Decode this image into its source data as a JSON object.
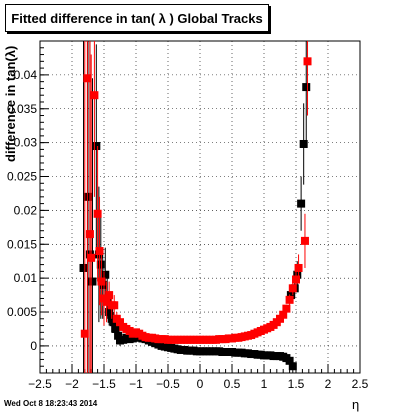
{
  "timestamp": "Wed Oct  8 18:23:43 2014",
  "chart_data": {
    "type": "scatter",
    "title": "Fitted difference in tan( λ )  Global Tracks",
    "xlabel": "η",
    "ylabel": "difference in tan(λ)",
    "xlim": [
      -2.5,
      2.5
    ],
    "ylim": [
      -0.004,
      0.045
    ],
    "xticks": [
      -2.5,
      -2,
      -1.5,
      -1,
      -0.5,
      0,
      0.5,
      1,
      1.5,
      2,
      2.5
    ],
    "xtick_labels": [
      "−2.5",
      "−2",
      "−1.5",
      "−1",
      "−0.5",
      "0",
      "0.5",
      "1",
      "1.5",
      "2",
      "2.5"
    ],
    "yticks": [
      0,
      0.005,
      0.01,
      0.015,
      0.02,
      0.025,
      0.03,
      0.035,
      0.04
    ],
    "ytick_labels": [
      "0",
      "0.005",
      "0.01",
      "0.015",
      "0.02",
      "0.025",
      "0.03",
      "0.035",
      "0.04"
    ],
    "grid": true,
    "series": [
      {
        "color": "#000000",
        "points": [
          {
            "x": -1.82,
            "y": 0.0115,
            "err": 0.05
          },
          {
            "x": -1.75,
            "y": 0.022,
            "err": 0.05
          },
          {
            "x": -1.72,
            "y": 0.0135,
            "err": 0.04
          },
          {
            "x": -1.68,
            "y": 0.0095,
            "err": 0.03
          },
          {
            "x": -1.62,
            "y": 0.0295,
            "err": 0.015
          },
          {
            "x": -1.58,
            "y": 0.0135,
            "err": 0.01
          },
          {
            "x": -1.55,
            "y": 0.012,
            "err": 0.008
          },
          {
            "x": -1.52,
            "y": 0.009,
            "err": 0.005
          },
          {
            "x": -1.48,
            "y": 0.0105,
            "err": 0.004
          },
          {
            "x": -1.45,
            "y": 0.007,
            "err": 0.003
          },
          {
            "x": -1.42,
            "y": 0.005,
            "err": 0.002
          },
          {
            "x": -1.38,
            "y": 0.004,
            "err": 0.002
          },
          {
            "x": -1.35,
            "y": 0.0035,
            "err": 0.0015
          },
          {
            "x": -1.32,
            "y": 0.0025,
            "err": 0.001
          },
          {
            "x": -1.28,
            "y": 0.0015,
            "err": 0.001
          },
          {
            "x": -1.25,
            "y": 0.0008,
            "err": 0.0008
          },
          {
            "x": -1.2,
            "y": 0.0009,
            "err": 0.0006
          },
          {
            "x": -1.15,
            "y": 0.0012,
            "err": 0.0006
          },
          {
            "x": -1.1,
            "y": 0.001,
            "err": 0.0005
          },
          {
            "x": -1.05,
            "y": 0.0011,
            "err": 0.0005
          },
          {
            "x": -1.0,
            "y": 0.0013,
            "err": 0.0005
          },
          {
            "x": -0.95,
            "y": 0.0012,
            "err": 0.0004
          },
          {
            "x": -0.9,
            "y": 0.0011,
            "err": 0.0004
          },
          {
            "x": -0.85,
            "y": 0.001,
            "err": 0.0004
          },
          {
            "x": -0.8,
            "y": 0.0008,
            "err": 0.0003
          },
          {
            "x": -0.75,
            "y": 0.0006,
            "err": 0.0003
          },
          {
            "x": -0.7,
            "y": 0.0004,
            "err": 0.0003
          },
          {
            "x": -0.65,
            "y": 0.0002,
            "err": 0.0003
          },
          {
            "x": -0.6,
            "y": 0.0,
            "err": 0.0003
          },
          {
            "x": -0.55,
            "y": -0.0001,
            "err": 0.0003
          },
          {
            "x": -0.5,
            "y": -0.0002,
            "err": 0.0003
          },
          {
            "x": -0.45,
            "y": -0.0003,
            "err": 0.0003
          },
          {
            "x": -0.4,
            "y": -0.0004,
            "err": 0.0003
          },
          {
            "x": -0.35,
            "y": -0.0005,
            "err": 0.0003
          },
          {
            "x": -0.3,
            "y": -0.0006,
            "err": 0.0003
          },
          {
            "x": -0.25,
            "y": -0.0006,
            "err": 0.0003
          },
          {
            "x": -0.2,
            "y": -0.0007,
            "err": 0.0003
          },
          {
            "x": -0.15,
            "y": -0.0007,
            "err": 0.0003
          },
          {
            "x": -0.1,
            "y": -0.0007,
            "err": 0.0003
          },
          {
            "x": -0.05,
            "y": -0.0008,
            "err": 0.0003
          },
          {
            "x": 0.0,
            "y": -0.0008,
            "err": 0.0003
          },
          {
            "x": 0.05,
            "y": -0.0008,
            "err": 0.0003
          },
          {
            "x": 0.1,
            "y": -0.0008,
            "err": 0.0003
          },
          {
            "x": 0.15,
            "y": -0.0008,
            "err": 0.0003
          },
          {
            "x": 0.2,
            "y": -0.0008,
            "err": 0.0003
          },
          {
            "x": 0.25,
            "y": -0.0008,
            "err": 0.0003
          },
          {
            "x": 0.3,
            "y": -0.0008,
            "err": 0.0003
          },
          {
            "x": 0.35,
            "y": -0.0009,
            "err": 0.0003
          },
          {
            "x": 0.4,
            "y": -0.0009,
            "err": 0.0003
          },
          {
            "x": 0.45,
            "y": -0.0009,
            "err": 0.0003
          },
          {
            "x": 0.5,
            "y": -0.0009,
            "err": 0.0003
          },
          {
            "x": 0.55,
            "y": -0.001,
            "err": 0.0003
          },
          {
            "x": 0.6,
            "y": -0.001,
            "err": 0.0003
          },
          {
            "x": 0.65,
            "y": -0.001,
            "err": 0.0003
          },
          {
            "x": 0.7,
            "y": -0.0011,
            "err": 0.0003
          },
          {
            "x": 0.75,
            "y": -0.0011,
            "err": 0.0003
          },
          {
            "x": 0.8,
            "y": -0.0012,
            "err": 0.0003
          },
          {
            "x": 0.85,
            "y": -0.0012,
            "err": 0.0003
          },
          {
            "x": 0.9,
            "y": -0.0013,
            "err": 0.0003
          },
          {
            "x": 0.95,
            "y": -0.0013,
            "err": 0.0003
          },
          {
            "x": 1.0,
            "y": -0.0014,
            "err": 0.0004
          },
          {
            "x": 1.05,
            "y": -0.0014,
            "err": 0.0004
          },
          {
            "x": 1.1,
            "y": -0.0014,
            "err": 0.0004
          },
          {
            "x": 1.15,
            "y": -0.0015,
            "err": 0.0004
          },
          {
            "x": 1.2,
            "y": -0.0015,
            "err": 0.0004
          },
          {
            "x": 1.25,
            "y": -0.0015,
            "err": 0.0005
          },
          {
            "x": 1.3,
            "y": -0.0016,
            "err": 0.0005
          },
          {
            "x": 1.35,
            "y": -0.0018,
            "err": 0.0006
          },
          {
            "x": 1.4,
            "y": -0.0022,
            "err": 0.0008
          },
          {
            "x": 1.45,
            "y": -0.003,
            "err": 0.001
          },
          {
            "x": 1.42,
            "y": 0.0075,
            "err": 0.001
          },
          {
            "x": 1.48,
            "y": 0.0085,
            "err": 0.0015
          },
          {
            "x": 1.52,
            "y": 0.0105,
            "err": 0.002
          },
          {
            "x": 1.58,
            "y": 0.021,
            "err": 0.004
          },
          {
            "x": 1.62,
            "y": 0.0298,
            "err": 0.006
          },
          {
            "x": 1.66,
            "y": 0.0382,
            "err": 0.008
          }
        ]
      },
      {
        "color": "#ff0000",
        "points": [
          {
            "x": -1.8,
            "y": 0.0018,
            "err": 0.05
          },
          {
            "x": -1.76,
            "y": 0.0395,
            "err": 0.05
          },
          {
            "x": -1.72,
            "y": 0.0165,
            "err": 0.04
          },
          {
            "x": -1.7,
            "y": 0.013,
            "err": 0.03
          },
          {
            "x": -1.65,
            "y": 0.037,
            "err": 0.015
          },
          {
            "x": -1.6,
            "y": 0.0195,
            "err": 0.01
          },
          {
            "x": -1.57,
            "y": 0.014,
            "err": 0.008
          },
          {
            "x": -1.54,
            "y": 0.0095,
            "err": 0.005
          },
          {
            "x": -1.5,
            "y": 0.007,
            "err": 0.004
          },
          {
            "x": -1.46,
            "y": 0.0065,
            "err": 0.003
          },
          {
            "x": -1.42,
            "y": 0.0075,
            "err": 0.002
          },
          {
            "x": -1.38,
            "y": 0.006,
            "err": 0.002
          },
          {
            "x": -1.34,
            "y": 0.006,
            "err": 0.0015
          },
          {
            "x": -1.3,
            "y": 0.004,
            "err": 0.001
          },
          {
            "x": -1.25,
            "y": 0.0035,
            "err": 0.001
          },
          {
            "x": -1.2,
            "y": 0.0028,
            "err": 0.0008
          },
          {
            "x": -1.15,
            "y": 0.0025,
            "err": 0.0006
          },
          {
            "x": -1.1,
            "y": 0.0022,
            "err": 0.0006
          },
          {
            "x": -1.05,
            "y": 0.0018,
            "err": 0.0005
          },
          {
            "x": -1.0,
            "y": 0.002,
            "err": 0.0005
          },
          {
            "x": -0.95,
            "y": 0.0018,
            "err": 0.0004
          },
          {
            "x": -0.9,
            "y": 0.0015,
            "err": 0.0004
          },
          {
            "x": -0.85,
            "y": 0.0013,
            "err": 0.0004
          },
          {
            "x": -0.8,
            "y": 0.0012,
            "err": 0.0003
          },
          {
            "x": -0.75,
            "y": 0.0012,
            "err": 0.0003
          },
          {
            "x": -0.7,
            "y": 0.0011,
            "err": 0.0003
          },
          {
            "x": -0.65,
            "y": 0.001,
            "err": 0.0003
          },
          {
            "x": -0.6,
            "y": 0.001,
            "err": 0.0003
          },
          {
            "x": -0.55,
            "y": 0.001,
            "err": 0.0003
          },
          {
            "x": -0.5,
            "y": 0.0009,
            "err": 0.0003
          },
          {
            "x": -0.45,
            "y": 0.0009,
            "err": 0.0003
          },
          {
            "x": -0.4,
            "y": 0.0009,
            "err": 0.0003
          },
          {
            "x": -0.35,
            "y": 0.0009,
            "err": 0.0003
          },
          {
            "x": -0.3,
            "y": 0.0009,
            "err": 0.0003
          },
          {
            "x": -0.25,
            "y": 0.0009,
            "err": 0.0003
          },
          {
            "x": -0.2,
            "y": 0.0009,
            "err": 0.0003
          },
          {
            "x": -0.15,
            "y": 0.0009,
            "err": 0.0003
          },
          {
            "x": -0.1,
            "y": 0.0009,
            "err": 0.0003
          },
          {
            "x": -0.05,
            "y": 0.0009,
            "err": 0.0003
          },
          {
            "x": 0.0,
            "y": 0.0009,
            "err": 0.0003
          },
          {
            "x": 0.05,
            "y": 0.0009,
            "err": 0.0003
          },
          {
            "x": 0.1,
            "y": 0.0009,
            "err": 0.0003
          },
          {
            "x": 0.15,
            "y": 0.0009,
            "err": 0.0003
          },
          {
            "x": 0.2,
            "y": 0.0009,
            "err": 0.0003
          },
          {
            "x": 0.25,
            "y": 0.0009,
            "err": 0.0003
          },
          {
            "x": 0.3,
            "y": 0.001,
            "err": 0.0003
          },
          {
            "x": 0.35,
            "y": 0.001,
            "err": 0.0003
          },
          {
            "x": 0.4,
            "y": 0.001,
            "err": 0.0003
          },
          {
            "x": 0.45,
            "y": 0.0011,
            "err": 0.0003
          },
          {
            "x": 0.5,
            "y": 0.0011,
            "err": 0.0003
          },
          {
            "x": 0.55,
            "y": 0.0012,
            "err": 0.0003
          },
          {
            "x": 0.6,
            "y": 0.0012,
            "err": 0.0003
          },
          {
            "x": 0.65,
            "y": 0.0013,
            "err": 0.0003
          },
          {
            "x": 0.7,
            "y": 0.0014,
            "err": 0.0003
          },
          {
            "x": 0.75,
            "y": 0.0015,
            "err": 0.0003
          },
          {
            "x": 0.8,
            "y": 0.0016,
            "err": 0.0003
          },
          {
            "x": 0.85,
            "y": 0.0018,
            "err": 0.0003
          },
          {
            "x": 0.9,
            "y": 0.002,
            "err": 0.0003
          },
          {
            "x": 0.95,
            "y": 0.0022,
            "err": 0.0003
          },
          {
            "x": 1.0,
            "y": 0.0024,
            "err": 0.0004
          },
          {
            "x": 1.05,
            "y": 0.0026,
            "err": 0.0004
          },
          {
            "x": 1.1,
            "y": 0.0028,
            "err": 0.0004
          },
          {
            "x": 1.15,
            "y": 0.0031,
            "err": 0.0004
          },
          {
            "x": 1.2,
            "y": 0.0035,
            "err": 0.0004
          },
          {
            "x": 1.25,
            "y": 0.004,
            "err": 0.0005
          },
          {
            "x": 1.3,
            "y": 0.0046,
            "err": 0.0005
          },
          {
            "x": 1.35,
            "y": 0.0055,
            "err": 0.0006
          },
          {
            "x": 1.4,
            "y": 0.0068,
            "err": 0.0008
          },
          {
            "x": 1.45,
            "y": 0.0085,
            "err": 0.001
          },
          {
            "x": 1.5,
            "y": 0.0098,
            "err": 0.0015
          },
          {
            "x": 1.54,
            "y": 0.0115,
            "err": 0.002
          },
          {
            "x": 1.64,
            "y": 0.0155,
            "err": 0.004
          },
          {
            "x": 1.68,
            "y": 0.042,
            "err": 0.008
          }
        ]
      }
    ]
  }
}
